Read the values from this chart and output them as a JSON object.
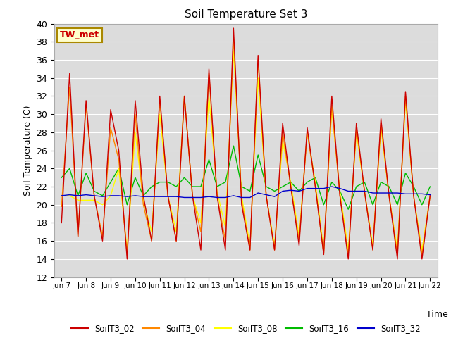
{
  "title": "Soil Temperature Set 3",
  "xlabel": "Time",
  "ylabel": "Soil Temperature (C)",
  "ylim": [
    12,
    40
  ],
  "yticks": [
    12,
    14,
    16,
    18,
    20,
    22,
    24,
    26,
    28,
    30,
    32,
    34,
    36,
    38,
    40
  ],
  "annotation_text": "TW_met",
  "annotation_facecolor": "#FFFFCC",
  "annotation_edgecolor": "#AA8800",
  "annotation_textcolor": "#CC0000",
  "bg_color": "#DCDCDC",
  "series": {
    "SoilT3_02": {
      "color": "#CC0000",
      "zorder": 5
    },
    "SoilT3_04": {
      "color": "#FF8800",
      "zorder": 4
    },
    "SoilT3_08": {
      "color": "#FFFF00",
      "zorder": 3
    },
    "SoilT3_16": {
      "color": "#00BB00",
      "zorder": 2
    },
    "SoilT3_32": {
      "color": "#0000CC",
      "zorder": 6
    }
  },
  "x_tick_labels": [
    "Jun 7",
    "Jun 8",
    "Jun 9",
    "Jun 10",
    "Jun 11",
    "Jun 12",
    "Jun 13",
    "Jun 14",
    "Jun 15",
    "Jun 16",
    "Jun 17",
    "Jun 18",
    "Jun 19",
    "Jun 20",
    "Jun 21",
    "Jun 22"
  ],
  "data": {
    "t": [
      0,
      0.33,
      0.67,
      1,
      1.33,
      1.67,
      2,
      2.33,
      2.67,
      3,
      3.33,
      3.67,
      4,
      4.33,
      4.67,
      5,
      5.33,
      5.67,
      6,
      6.33,
      6.67,
      7,
      7.33,
      7.67,
      8,
      8.33,
      8.67,
      9,
      9.33,
      9.67,
      10,
      10.33,
      10.67,
      11,
      11.33,
      11.67,
      12,
      12.33,
      12.67,
      13,
      13.33,
      13.67,
      14,
      14.33,
      14.67,
      15
    ],
    "SoilT3_02": [
      18,
      34.5,
      16.5,
      31.5,
      21,
      16,
      30.5,
      26,
      14,
      31.5,
      21,
      16,
      32,
      21,
      16,
      32,
      21,
      15,
      35,
      21,
      15,
      39.5,
      20,
      15,
      36.5,
      21,
      15,
      29,
      22,
      15.5,
      28.5,
      22,
      14.5,
      32,
      21,
      14,
      29,
      21.5,
      15,
      29.5,
      21,
      14,
      32.5,
      21,
      14,
      21
    ],
    "SoilT3_04": [
      19.8,
      33,
      16.5,
      31,
      21,
      16.5,
      28.5,
      25,
      14.5,
      30,
      20,
      16,
      31.5,
      21,
      16,
      32,
      21,
      17,
      34.5,
      21,
      16,
      38.5,
      20.5,
      15,
      36,
      21,
      15,
      28,
      22,
      16,
      28,
      22,
      14.5,
      31,
      21,
      14.5,
      28.5,
      21.5,
      15,
      29,
      21,
      14.5,
      32,
      21,
      14.5,
      21
    ],
    "SoilT3_08": [
      21,
      21,
      20.5,
      20.5,
      20.5,
      20,
      21,
      24,
      15,
      28,
      20.5,
      17,
      30,
      21,
      17,
      32,
      21,
      18,
      32,
      21.5,
      17.5,
      37,
      21,
      15.5,
      34,
      21,
      15.5,
      27,
      22.5,
      16.5,
      28,
      22.5,
      15,
      30.5,
      21.5,
      15,
      28,
      21.5,
      15.5,
      28.5,
      21,
      15,
      31.5,
      21,
      15,
      21
    ],
    "SoilT3_16": [
      23,
      24,
      21,
      23.5,
      21.5,
      21,
      22.5,
      24,
      20,
      23,
      21,
      22,
      22.5,
      22.5,
      22,
      23,
      22,
      22,
      25,
      22,
      22.5,
      26.5,
      22,
      21.5,
      25.5,
      22,
      21.5,
      22,
      22.5,
      21.5,
      22.5,
      23,
      20,
      22.5,
      21.5,
      19.5,
      22,
      22.5,
      20,
      22.5,
      22,
      20,
      23.5,
      22,
      20,
      22
    ],
    "SoilT3_32": [
      21.0,
      21.1,
      21.0,
      21.1,
      21.0,
      20.9,
      21.0,
      21.0,
      20.9,
      21.0,
      20.9,
      20.9,
      20.9,
      20.9,
      20.9,
      20.8,
      20.8,
      20.8,
      20.9,
      20.8,
      20.8,
      21.0,
      20.8,
      20.8,
      21.3,
      21.1,
      20.9,
      21.5,
      21.6,
      21.5,
      21.8,
      21.8,
      21.8,
      22.0,
      21.8,
      21.5,
      21.5,
      21.5,
      21.3,
      21.3,
      21.3,
      21.3,
      21.2,
      21.2,
      21.2,
      21.1
    ]
  }
}
